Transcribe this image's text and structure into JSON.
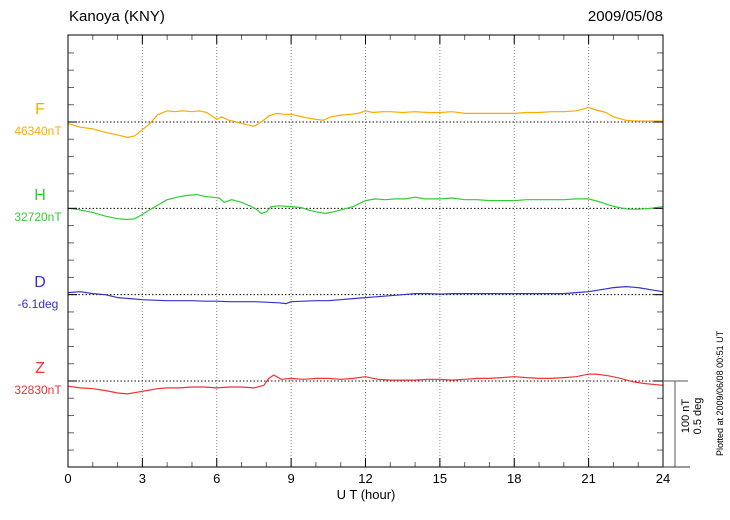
{
  "header": {
    "station_title": "Kanoya (KNY)",
    "date": "2009/05/08"
  },
  "x_axis": {
    "label": "U T (hour)",
    "tick_labels": [
      "0",
      "3",
      "6",
      "9",
      "12",
      "15",
      "18",
      "21",
      "24"
    ]
  },
  "scale_bar": {
    "line1": "100 nT",
    "line2": "0.5 deg"
  },
  "plotted_at": "Plotted at 2009/06/08 00:51 UT",
  "chart_data": {
    "type": "line",
    "title": "Kanoya (KNY)",
    "subtitle": "2009/05/08",
    "xlabel": "U T (hour)",
    "x_range_hours": [
      0,
      24
    ],
    "x_major_tick_hours": [
      0,
      3,
      6,
      9,
      12,
      15,
      18,
      21,
      24
    ],
    "x_minor_tick_step_hours": 1,
    "grid": {
      "vertical_dotted_every_hours": 3,
      "horizontal_dotted_at_baselines": true
    },
    "amplitude_per_division": {
      "nT": 100,
      "deg": 0.5
    },
    "legend_position": "left margin (channel letter + baseline value)",
    "series": [
      {
        "id": "F",
        "label": "F",
        "unit": "nT",
        "baseline_value": 46340,
        "baseline_label": "46340nT",
        "color": "#ffaa00",
        "offsets_from_baseline": [
          [
            0,
            -2
          ],
          [
            0.5,
            -6
          ],
          [
            1,
            -8
          ],
          [
            1.5,
            -12
          ],
          [
            2,
            -15
          ],
          [
            2.4,
            -18
          ],
          [
            2.7,
            -16
          ],
          [
            3,
            -9
          ],
          [
            3.3,
            -2
          ],
          [
            3.6,
            8
          ],
          [
            4,
            13
          ],
          [
            4.3,
            12
          ],
          [
            4.6,
            13
          ],
          [
            5,
            12
          ],
          [
            5.3,
            13
          ],
          [
            5.6,
            11
          ],
          [
            6,
            3
          ],
          [
            6.2,
            6
          ],
          [
            6.5,
            2
          ],
          [
            6.8,
            0
          ],
          [
            7.2,
            -3
          ],
          [
            7.5,
            -5
          ],
          [
            7.8,
            0
          ],
          [
            8.1,
            7
          ],
          [
            8.4,
            10
          ],
          [
            8.7,
            9
          ],
          [
            9,
            9
          ],
          [
            9.3,
            7
          ],
          [
            9.6,
            5
          ],
          [
            10,
            3
          ],
          [
            10.3,
            2
          ],
          [
            10.6,
            6
          ],
          [
            11,
            8
          ],
          [
            11.4,
            9
          ],
          [
            11.7,
            10
          ],
          [
            12,
            13
          ],
          [
            12.3,
            11
          ],
          [
            12.7,
            12
          ],
          [
            13,
            12
          ],
          [
            13.5,
            11
          ],
          [
            14,
            12
          ],
          [
            14.5,
            11
          ],
          [
            15,
            11
          ],
          [
            15.5,
            12
          ],
          [
            16,
            10
          ],
          [
            16.5,
            10
          ],
          [
            17,
            10
          ],
          [
            17.5,
            10
          ],
          [
            18,
            10
          ],
          [
            18.5,
            11
          ],
          [
            19,
            11
          ],
          [
            19.5,
            12
          ],
          [
            20,
            12
          ],
          [
            20.5,
            13
          ],
          [
            21,
            17
          ],
          [
            21.3,
            14
          ],
          [
            21.7,
            11
          ],
          [
            22,
            6
          ],
          [
            22.5,
            2
          ],
          [
            23,
            1
          ],
          [
            23.5,
            1
          ],
          [
            24,
            1
          ]
        ]
      },
      {
        "id": "H",
        "label": "H",
        "unit": "nT",
        "baseline_value": 32720,
        "baseline_label": "32720nT",
        "color": "#33cc33",
        "offsets_from_baseline": [
          [
            0,
            0
          ],
          [
            0.3,
            -1
          ],
          [
            0.7,
            -3
          ],
          [
            1,
            -5
          ],
          [
            1.5,
            -9
          ],
          [
            2,
            -12
          ],
          [
            2.4,
            -13
          ],
          [
            2.7,
            -12
          ],
          [
            3,
            -7
          ],
          [
            3.4,
            0
          ],
          [
            3.7,
            5
          ],
          [
            4,
            10
          ],
          [
            4.4,
            13
          ],
          [
            4.8,
            15
          ],
          [
            5.2,
            16
          ],
          [
            5.5,
            14
          ],
          [
            5.8,
            13
          ],
          [
            6.1,
            12
          ],
          [
            6.3,
            7
          ],
          [
            6.6,
            10
          ],
          [
            7,
            7
          ],
          [
            7.4,
            2
          ],
          [
            7.6,
            -1
          ],
          [
            7.8,
            -6
          ],
          [
            8,
            -4
          ],
          [
            8.2,
            2
          ],
          [
            8.5,
            3
          ],
          [
            9,
            2
          ],
          [
            9.4,
            1
          ],
          [
            9.7,
            -2
          ],
          [
            10,
            -4
          ],
          [
            10.4,
            -6
          ],
          [
            10.7,
            -4
          ],
          [
            11,
            -2
          ],
          [
            11.5,
            2
          ],
          [
            12,
            9
          ],
          [
            12.4,
            11
          ],
          [
            12.8,
            10
          ],
          [
            13.2,
            11
          ],
          [
            13.6,
            11
          ],
          [
            14,
            13
          ],
          [
            14.4,
            11
          ],
          [
            15,
            11
          ],
          [
            15.5,
            12
          ],
          [
            16,
            10
          ],
          [
            16.5,
            10
          ],
          [
            17,
            9
          ],
          [
            17.5,
            9
          ],
          [
            18,
            9
          ],
          [
            18.5,
            10
          ],
          [
            19,
            10
          ],
          [
            19.5,
            10
          ],
          [
            20,
            10
          ],
          [
            20.5,
            11
          ],
          [
            21,
            11
          ],
          [
            21.4,
            8
          ],
          [
            21.8,
            4
          ],
          [
            22.2,
            1
          ],
          [
            22.6,
            -1
          ],
          [
            23,
            -1
          ],
          [
            23.5,
            0
          ],
          [
            24,
            2
          ]
        ]
      },
      {
        "id": "D",
        "label": "D",
        "unit": "deg",
        "baseline_value": -6.1,
        "baseline_label": "-6.1deg",
        "color": "#3333cc",
        "offsets_from_baseline": [
          [
            0,
            0.012
          ],
          [
            0.5,
            0.017
          ],
          [
            1,
            0.006
          ],
          [
            1.5,
            0
          ],
          [
            2,
            -0.017
          ],
          [
            2.5,
            -0.023
          ],
          [
            3,
            -0.029
          ],
          [
            3.5,
            -0.032
          ],
          [
            4,
            -0.035
          ],
          [
            4.5,
            -0.035
          ],
          [
            5,
            -0.035
          ],
          [
            5.5,
            -0.038
          ],
          [
            6,
            -0.038
          ],
          [
            6.5,
            -0.041
          ],
          [
            7,
            -0.041
          ],
          [
            7.5,
            -0.041
          ],
          [
            8,
            -0.044
          ],
          [
            8.5,
            -0.047
          ],
          [
            8.8,
            -0.052
          ],
          [
            9,
            -0.041
          ],
          [
            9.5,
            -0.038
          ],
          [
            10,
            -0.035
          ],
          [
            10.5,
            -0.035
          ],
          [
            11,
            -0.029
          ],
          [
            11.5,
            -0.023
          ],
          [
            12,
            -0.017
          ],
          [
            12.5,
            -0.012
          ],
          [
            13,
            -0.006
          ],
          [
            13.5,
            0
          ],
          [
            14,
            0.006
          ],
          [
            14.5,
            0.006
          ],
          [
            15,
            0.003
          ],
          [
            15.5,
            0.006
          ],
          [
            16,
            0.006
          ],
          [
            16.5,
            0.006
          ],
          [
            17,
            0.006
          ],
          [
            17.5,
            0.006
          ],
          [
            18,
            0.006
          ],
          [
            18.5,
            0.006
          ],
          [
            19,
            0.006
          ],
          [
            19.5,
            0.006
          ],
          [
            20,
            0.006
          ],
          [
            20.5,
            0.012
          ],
          [
            21,
            0.017
          ],
          [
            21.5,
            0.029
          ],
          [
            22,
            0.041
          ],
          [
            22.5,
            0.047
          ],
          [
            23,
            0.041
          ],
          [
            23.5,
            0.029
          ],
          [
            24,
            0.017
          ]
        ]
      },
      {
        "id": "Z",
        "label": "Z",
        "unit": "nT",
        "baseline_value": 32830,
        "baseline_label": "32830nT",
        "color": "#ee3333",
        "offsets_from_baseline": [
          [
            0,
            -6
          ],
          [
            0.5,
            -8
          ],
          [
            1,
            -9
          ],
          [
            1.5,
            -11
          ],
          [
            2,
            -14
          ],
          [
            2.4,
            -15
          ],
          [
            2.8,
            -13
          ],
          [
            3.2,
            -11
          ],
          [
            3.6,
            -9
          ],
          [
            4,
            -8
          ],
          [
            4.5,
            -8
          ],
          [
            5,
            -7
          ],
          [
            5.5,
            -7
          ],
          [
            6,
            -8
          ],
          [
            6.5,
            -7
          ],
          [
            7,
            -7
          ],
          [
            7.5,
            -8
          ],
          [
            7.9,
            -5
          ],
          [
            8.1,
            3
          ],
          [
            8.3,
            7
          ],
          [
            8.6,
            2
          ],
          [
            9,
            3
          ],
          [
            9.5,
            2
          ],
          [
            10,
            3
          ],
          [
            10.5,
            3
          ],
          [
            11,
            2
          ],
          [
            11.5,
            3
          ],
          [
            12,
            5
          ],
          [
            12.5,
            2
          ],
          [
            13,
            1
          ],
          [
            13.5,
            1
          ],
          [
            14,
            1
          ],
          [
            14.5,
            2
          ],
          [
            15,
            2
          ],
          [
            15.5,
            1
          ],
          [
            16,
            2
          ],
          [
            16.5,
            3
          ],
          [
            17,
            3
          ],
          [
            17.5,
            4
          ],
          [
            18,
            5
          ],
          [
            18.5,
            4
          ],
          [
            19,
            3
          ],
          [
            19.5,
            3
          ],
          [
            20,
            4
          ],
          [
            20.5,
            5
          ],
          [
            21,
            8
          ],
          [
            21.3,
            8
          ],
          [
            21.8,
            6
          ],
          [
            22.3,
            3
          ],
          [
            22.8,
            -1
          ],
          [
            23.3,
            -3
          ],
          [
            24,
            -5
          ]
        ]
      }
    ]
  }
}
